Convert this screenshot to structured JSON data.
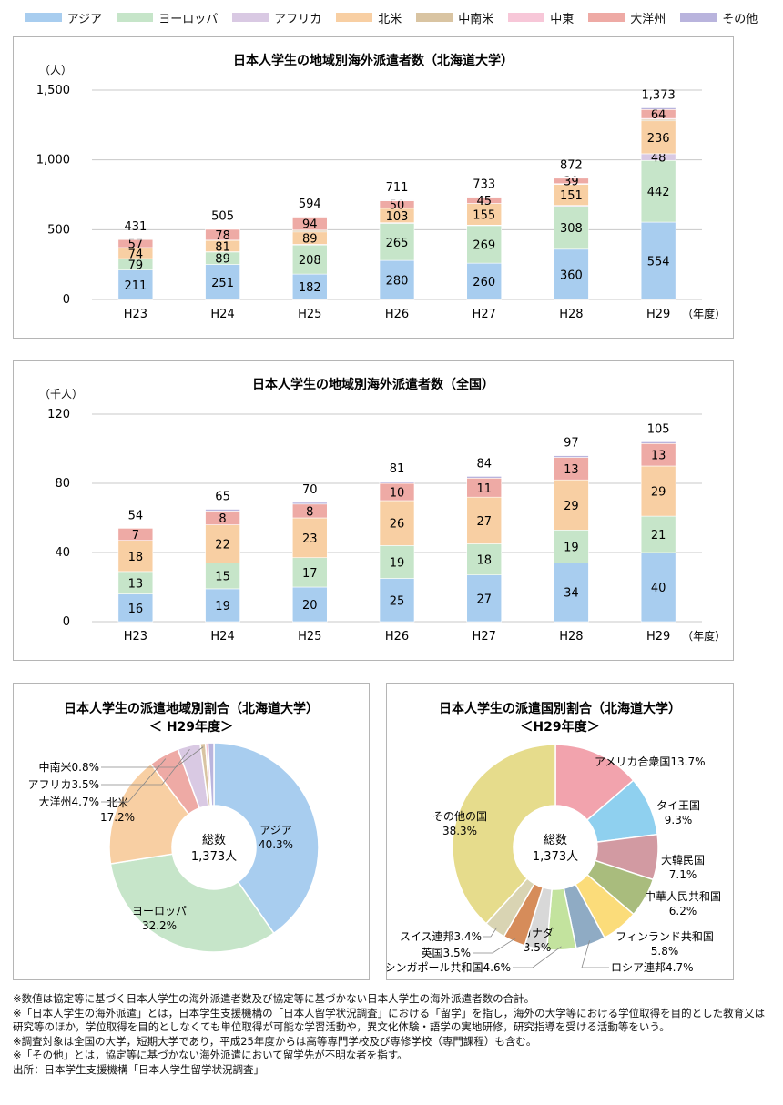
{
  "legend": [
    {
      "name": "アジア",
      "color": "#a8cdef"
    },
    {
      "name": "ヨーロッパ",
      "color": "#c6e5c9"
    },
    {
      "name": "アフリカ",
      "color": "#d9c9e3"
    },
    {
      "name": "北米",
      "color": "#f8cfa3"
    },
    {
      "name": "中南米",
      "color": "#d9c4a2"
    },
    {
      "name": "中東",
      "color": "#f7c7d8"
    },
    {
      "name": "大洋州",
      "color": "#eeaaa5"
    },
    {
      "name": "その他",
      "color": "#b9b4dd"
    }
  ],
  "chart_data": [
    {
      "type": "bar",
      "stacked": true,
      "title": "日本人学生の地域別海外派遣者数（北海道大学）",
      "ylabel": "（人）",
      "xunit": "（年度）",
      "categories": [
        "H23",
        "H24",
        "H25",
        "H26",
        "H27",
        "H28",
        "H29"
      ],
      "ylim": [
        0,
        1500
      ],
      "yticks": [
        "0",
        "500",
        "1,000",
        "1,500"
      ],
      "ytick_values": [
        0,
        500,
        1000,
        1500
      ],
      "totals": [
        431,
        505,
        594,
        711,
        733,
        872,
        1373
      ],
      "total_labels": [
        "431",
        "505",
        "594",
        "711",
        "733",
        "872",
        "1,373"
      ],
      "series": [
        {
          "name": "アジア",
          "values": [
            211,
            251,
            182,
            280,
            260,
            360,
            554
          ],
          "labels": [
            "211",
            "251",
            "182",
            "280",
            "260",
            "360",
            "554"
          ]
        },
        {
          "name": "ヨーロッパ",
          "values": [
            79,
            89,
            208,
            265,
            269,
            308,
            442
          ],
          "labels": [
            "79",
            "89",
            "208",
            "265",
            "269",
            "308",
            "442"
          ]
        },
        {
          "name": "アフリカ",
          "values": [
            3,
            2,
            5,
            5,
            4,
            6,
            48
          ],
          "labels": [
            "",
            "",
            "",
            "",
            "",
            "",
            "48"
          ]
        },
        {
          "name": "北米",
          "values": [
            74,
            81,
            89,
            103,
            155,
            151,
            236
          ],
          "labels": [
            "74",
            "81",
            "89",
            "103",
            "155",
            "151",
            "236"
          ]
        },
        {
          "name": "中南米",
          "values": [
            4,
            2,
            11,
            3,
            0,
            4,
            11
          ],
          "labels": [
            "",
            "",
            "",
            "",
            "",
            "",
            ""
          ]
        },
        {
          "name": "中東",
          "values": [
            1,
            0,
            2,
            1,
            0,
            1,
            6
          ],
          "labels": [
            "",
            "",
            "",
            "",
            "",
            "",
            ""
          ]
        },
        {
          "name": "大洋州",
          "values": [
            57,
            78,
            94,
            50,
            45,
            39,
            64
          ],
          "labels": [
            "57",
            "78",
            "94",
            "50",
            "45",
            "39",
            "64"
          ]
        },
        {
          "name": "その他",
          "values": [
            2,
            2,
            3,
            4,
            0,
            3,
            12
          ],
          "labels": [
            "",
            "",
            "",
            "",
            "",
            "",
            ""
          ]
        }
      ]
    },
    {
      "type": "bar",
      "stacked": true,
      "title": "日本人学生の地域別海外派遣者数（全国）",
      "ylabel": "（千人）",
      "xunit": "（年度）",
      "categories": [
        "H23",
        "H24",
        "H25",
        "H26",
        "H27",
        "H28",
        "H29"
      ],
      "ylim": [
        0,
        120
      ],
      "yticks": [
        "0",
        "40",
        "80",
        "120"
      ],
      "ytick_values": [
        0,
        40,
        80,
        120
      ],
      "totals": [
        54,
        65,
        70,
        81,
        84,
        97,
        105
      ],
      "total_labels": [
        "54",
        "65",
        "70",
        "81",
        "84",
        "97",
        "105"
      ],
      "series": [
        {
          "name": "アジア",
          "values": [
            16,
            19,
            20,
            25,
            27,
            34,
            40
          ],
          "labels": [
            "16",
            "19",
            "20",
            "25",
            "27",
            "34",
            "40"
          ]
        },
        {
          "name": "ヨーロッパ",
          "values": [
            13,
            15,
            17,
            19,
            18,
            19,
            21
          ],
          "labels": [
            "13",
            "15",
            "17",
            "19",
            "18",
            "19",
            "21"
          ]
        },
        {
          "name": "アフリカ",
          "values": [
            0,
            0,
            0,
            0,
            0,
            0,
            0
          ],
          "labels": [
            "",
            "",
            "",
            "",
            "",
            "",
            ""
          ]
        },
        {
          "name": "北米",
          "values": [
            18,
            22,
            23,
            26,
            27,
            29,
            29
          ],
          "labels": [
            "18",
            "22",
            "23",
            "26",
            "27",
            "29",
            "29"
          ]
        },
        {
          "name": "中南米",
          "values": [
            0,
            0,
            0,
            0,
            0,
            0,
            0
          ],
          "labels": [
            "",
            "",
            "",
            "",
            "",
            "",
            ""
          ]
        },
        {
          "name": "中東",
          "values": [
            0,
            0,
            0,
            0,
            0,
            0,
            0
          ],
          "labels": [
            "",
            "",
            "",
            "",
            "",
            "",
            ""
          ]
        },
        {
          "name": "大洋州",
          "values": [
            7,
            8,
            8,
            10,
            11,
            13,
            13
          ],
          "labels": [
            "7",
            "8",
            "8",
            "10",
            "11",
            "13",
            "13"
          ]
        },
        {
          "name": "その他",
          "values": [
            0,
            1,
            1,
            1,
            1,
            1,
            1
          ],
          "labels": [
            "",
            "",
            "",
            "",
            "",
            "",
            ""
          ]
        }
      ]
    },
    {
      "type": "pie",
      "donut": true,
      "title": "日本人学生の派遣地域別割合（北海道大学）",
      "subtitle": "＜ H29年度＞",
      "center_label": "総数",
      "center_value": "1,373人",
      "slices": [
        {
          "name": "アジア",
          "value": 40.3,
          "label": "アジア",
          "pct": "40.3%",
          "color": "#a8cdef"
        },
        {
          "name": "ヨーロッパ",
          "value": 32.2,
          "label": "ヨーロッパ",
          "pct": "32.2%",
          "color": "#c6e5c9"
        },
        {
          "name": "北米",
          "value": 17.2,
          "label": "北米",
          "pct": "17.2%",
          "color": "#f8cfa3"
        },
        {
          "name": "大洋州",
          "value": 4.7,
          "label": "大洋州4.7%",
          "pct": "",
          "color": "#eeaaa5"
        },
        {
          "name": "アフリカ",
          "value": 3.5,
          "label": "アフリカ3.5%",
          "pct": "",
          "color": "#d9c9e3"
        },
        {
          "name": "中南米",
          "value": 0.8,
          "label": "中南米0.8%",
          "pct": "",
          "color": "#d9c4a2"
        },
        {
          "name": "中東",
          "value": 0.4,
          "label": "",
          "pct": "",
          "color": "#f7c7d8"
        },
        {
          "name": "その他",
          "value": 0.9,
          "label": "",
          "pct": "",
          "color": "#b9b4dd"
        }
      ]
    },
    {
      "type": "pie",
      "donut": true,
      "title": "日本人学生の派遣国別割合（北海道大学）",
      "subtitle": "＜H29年度＞",
      "center_label": "総数",
      "center_value": "1,373人",
      "slices": [
        {
          "name": "アメリカ合衆国",
          "value": 13.7,
          "label": "アメリカ合衆国13.7%",
          "pct": "",
          "color": "#f2a3ad"
        },
        {
          "name": "タイ王国",
          "value": 9.3,
          "label": "タイ王国",
          "pct": "9.3%",
          "color": "#8fd0ef"
        },
        {
          "name": "大韓民国",
          "value": 7.1,
          "label": "大韓民国",
          "pct": "7.1%",
          "color": "#d29aa2"
        },
        {
          "name": "中華人民共和国",
          "value": 6.2,
          "label": "中華人民共和国",
          "pct": "6.2%",
          "color": "#a9bc7d"
        },
        {
          "name": "フィンランド共和国",
          "value": 5.8,
          "label": "フィンランド共和国",
          "pct": "5.8%",
          "color": "#fbdc7a"
        },
        {
          "name": "ロシア連邦",
          "value": 4.7,
          "label": "ロシア連邦4.7%",
          "pct": "",
          "color": "#8fabc4"
        },
        {
          "name": "シンガポール共和国",
          "value": 4.6,
          "label": "シンガポール共和国4.6%",
          "pct": "",
          "color": "#c3e39e"
        },
        {
          "name": "カナダ",
          "value": 3.5,
          "label": "カナダ",
          "pct": "3.5%",
          "color": "#d8d8d8"
        },
        {
          "name": "英国",
          "value": 3.5,
          "label": "英国3.5%",
          "pct": "",
          "color": "#d68c5a"
        },
        {
          "name": "スイス連邦",
          "value": 3.4,
          "label": "スイス連邦3.4%",
          "pct": "",
          "color": "#d9d4b3"
        },
        {
          "name": "その他の国",
          "value": 38.3,
          "label": "その他の国",
          "pct": "38.3%",
          "color": "#e6dc8c"
        }
      ]
    }
  ],
  "notes": [
    "※数値は協定等に基づく日本人学生の海外派遣者数及び協定等に基づかない日本人学生の海外派遣者数の合計。",
    "※「日本人学生の海外派遣」とは，日本学生支援機構の「日本人留学状況調査」における「留学」を指し，海外の大学等における学位取得を目的とした教育又は研究等のほか，学位取得を目的としなくても単位取得が可能な学習活動や，異文化体験・語学の実地研修，研究指導を受ける活動等をいう。",
    "※調査対象は全国の大学，短期大学であり，平成25年度からは高等専門学校及び専修学校（専門課程）も含む。",
    "※「その他」とは，協定等に基づかない海外派遣において留学先が不明な者を指す。",
    "出所：日本学生支援機構「日本人学生留学状況調査」"
  ]
}
